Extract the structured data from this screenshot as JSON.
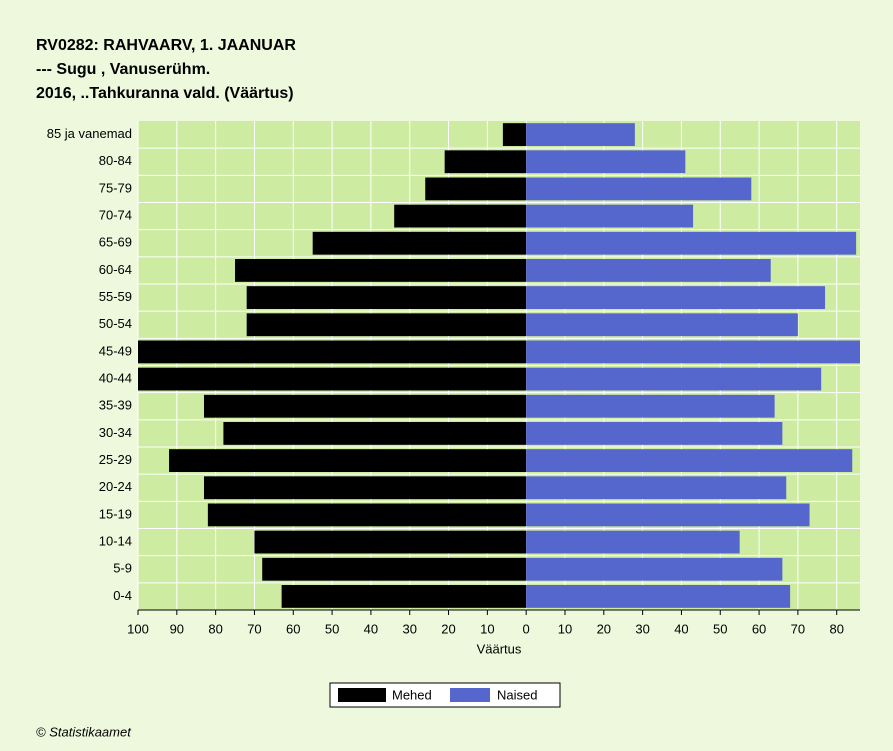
{
  "chart_data": {
    "type": "pyramid",
    "title": "RV0282: RAHVAARV, 1. JAANUAR",
    "subtitle": [
      "--- Sugu , Vanuserühm.",
      "2016, ..Tahkuranna vald. (Väärtus)"
    ],
    "x_label": "Väärtus",
    "source": "© Statistikaamet",
    "categories": [
      "85 ja vanemad",
      "80-84",
      "75-79",
      "70-74",
      "65-69",
      "60-64",
      "55-59",
      "50-54",
      "45-49",
      "40-44",
      "35-39",
      "30-34",
      "25-29",
      "20-24",
      "15-19",
      "10-14",
      "5-9",
      "0-4"
    ],
    "series": [
      {
        "name": "Mehed",
        "color": "#000000",
        "values": [
          -6,
          -21,
          -26,
          -34,
          -55,
          -75,
          -72,
          -72,
          -100,
          -100,
          -83,
          -78,
          -92,
          -83,
          -82,
          -70,
          -68,
          -63
        ]
      },
      {
        "name": "Naised",
        "color": "#5566cc",
        "values": [
          28,
          41,
          58,
          43,
          85,
          63,
          77,
          70,
          86,
          76,
          64,
          66,
          84,
          67,
          73,
          55,
          66,
          68
        ]
      }
    ],
    "xlim": [
      -100,
      86
    ],
    "xticks": [
      {
        "value": -100,
        "label": "100"
      },
      {
        "value": -90,
        "label": "90"
      },
      {
        "value": -80,
        "label": "80"
      },
      {
        "value": -70,
        "label": "70"
      },
      {
        "value": -60,
        "label": "60"
      },
      {
        "value": -50,
        "label": "50"
      },
      {
        "value": -40,
        "label": "40"
      },
      {
        "value": -30,
        "label": "30"
      },
      {
        "value": -20,
        "label": "20"
      },
      {
        "value": -10,
        "label": "10"
      },
      0,
      10,
      20,
      30,
      40,
      50,
      60,
      70,
      80
    ],
    "grid": true,
    "legend": "bottom"
  }
}
